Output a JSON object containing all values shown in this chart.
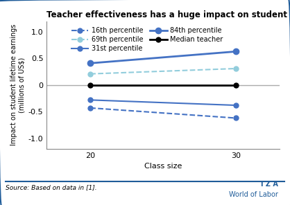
{
  "title": "Teacher effectiveness has a huge impact on student earnings",
  "xlabel": "Class size",
  "ylabel": "Impact on student lifetime earnings\n(millions of US$)",
  "x": [
    20,
    30
  ],
  "series": {
    "16th percentile": {
      "y": [
        -0.43,
        -0.62
      ],
      "color": "#4472C4",
      "linestyle": "dashed",
      "linewidth": 1.5,
      "markersize": 5
    },
    "31st percentile": {
      "y": [
        -0.28,
        -0.38
      ],
      "color": "#4472C4",
      "linestyle": "solid",
      "linewidth": 1.5,
      "markersize": 5
    },
    "69th percentile": {
      "y": [
        0.21,
        0.31
      ],
      "color": "#92CDDC",
      "linestyle": "dashed",
      "linewidth": 1.5,
      "markersize": 5
    },
    "84th percentile": {
      "y": [
        0.41,
        0.63
      ],
      "color": "#4472C4",
      "linestyle": "solid",
      "linewidth": 2.0,
      "markersize": 6
    },
    "Median teacher": {
      "y": [
        0.0,
        0.0
      ],
      "color": "#000000",
      "linestyle": "solid",
      "linewidth": 2.0,
      "markersize": 5
    }
  },
  "ylim": [
    -1.2,
    1.2
  ],
  "yticks": [
    -1.0,
    -0.5,
    0.0,
    0.5,
    1.0
  ],
  "xticks": [
    20,
    30
  ],
  "source_text": "Source: Based on data in [1].",
  "iza_text": "I Z A",
  "wol_text": "World of Labor",
  "border_color": "#1F5C99",
  "background_color": "#FFFFFF",
  "iza_color": "#1F5C99",
  "zero_line_color": "#AAAAAA",
  "legend_cols": 2
}
